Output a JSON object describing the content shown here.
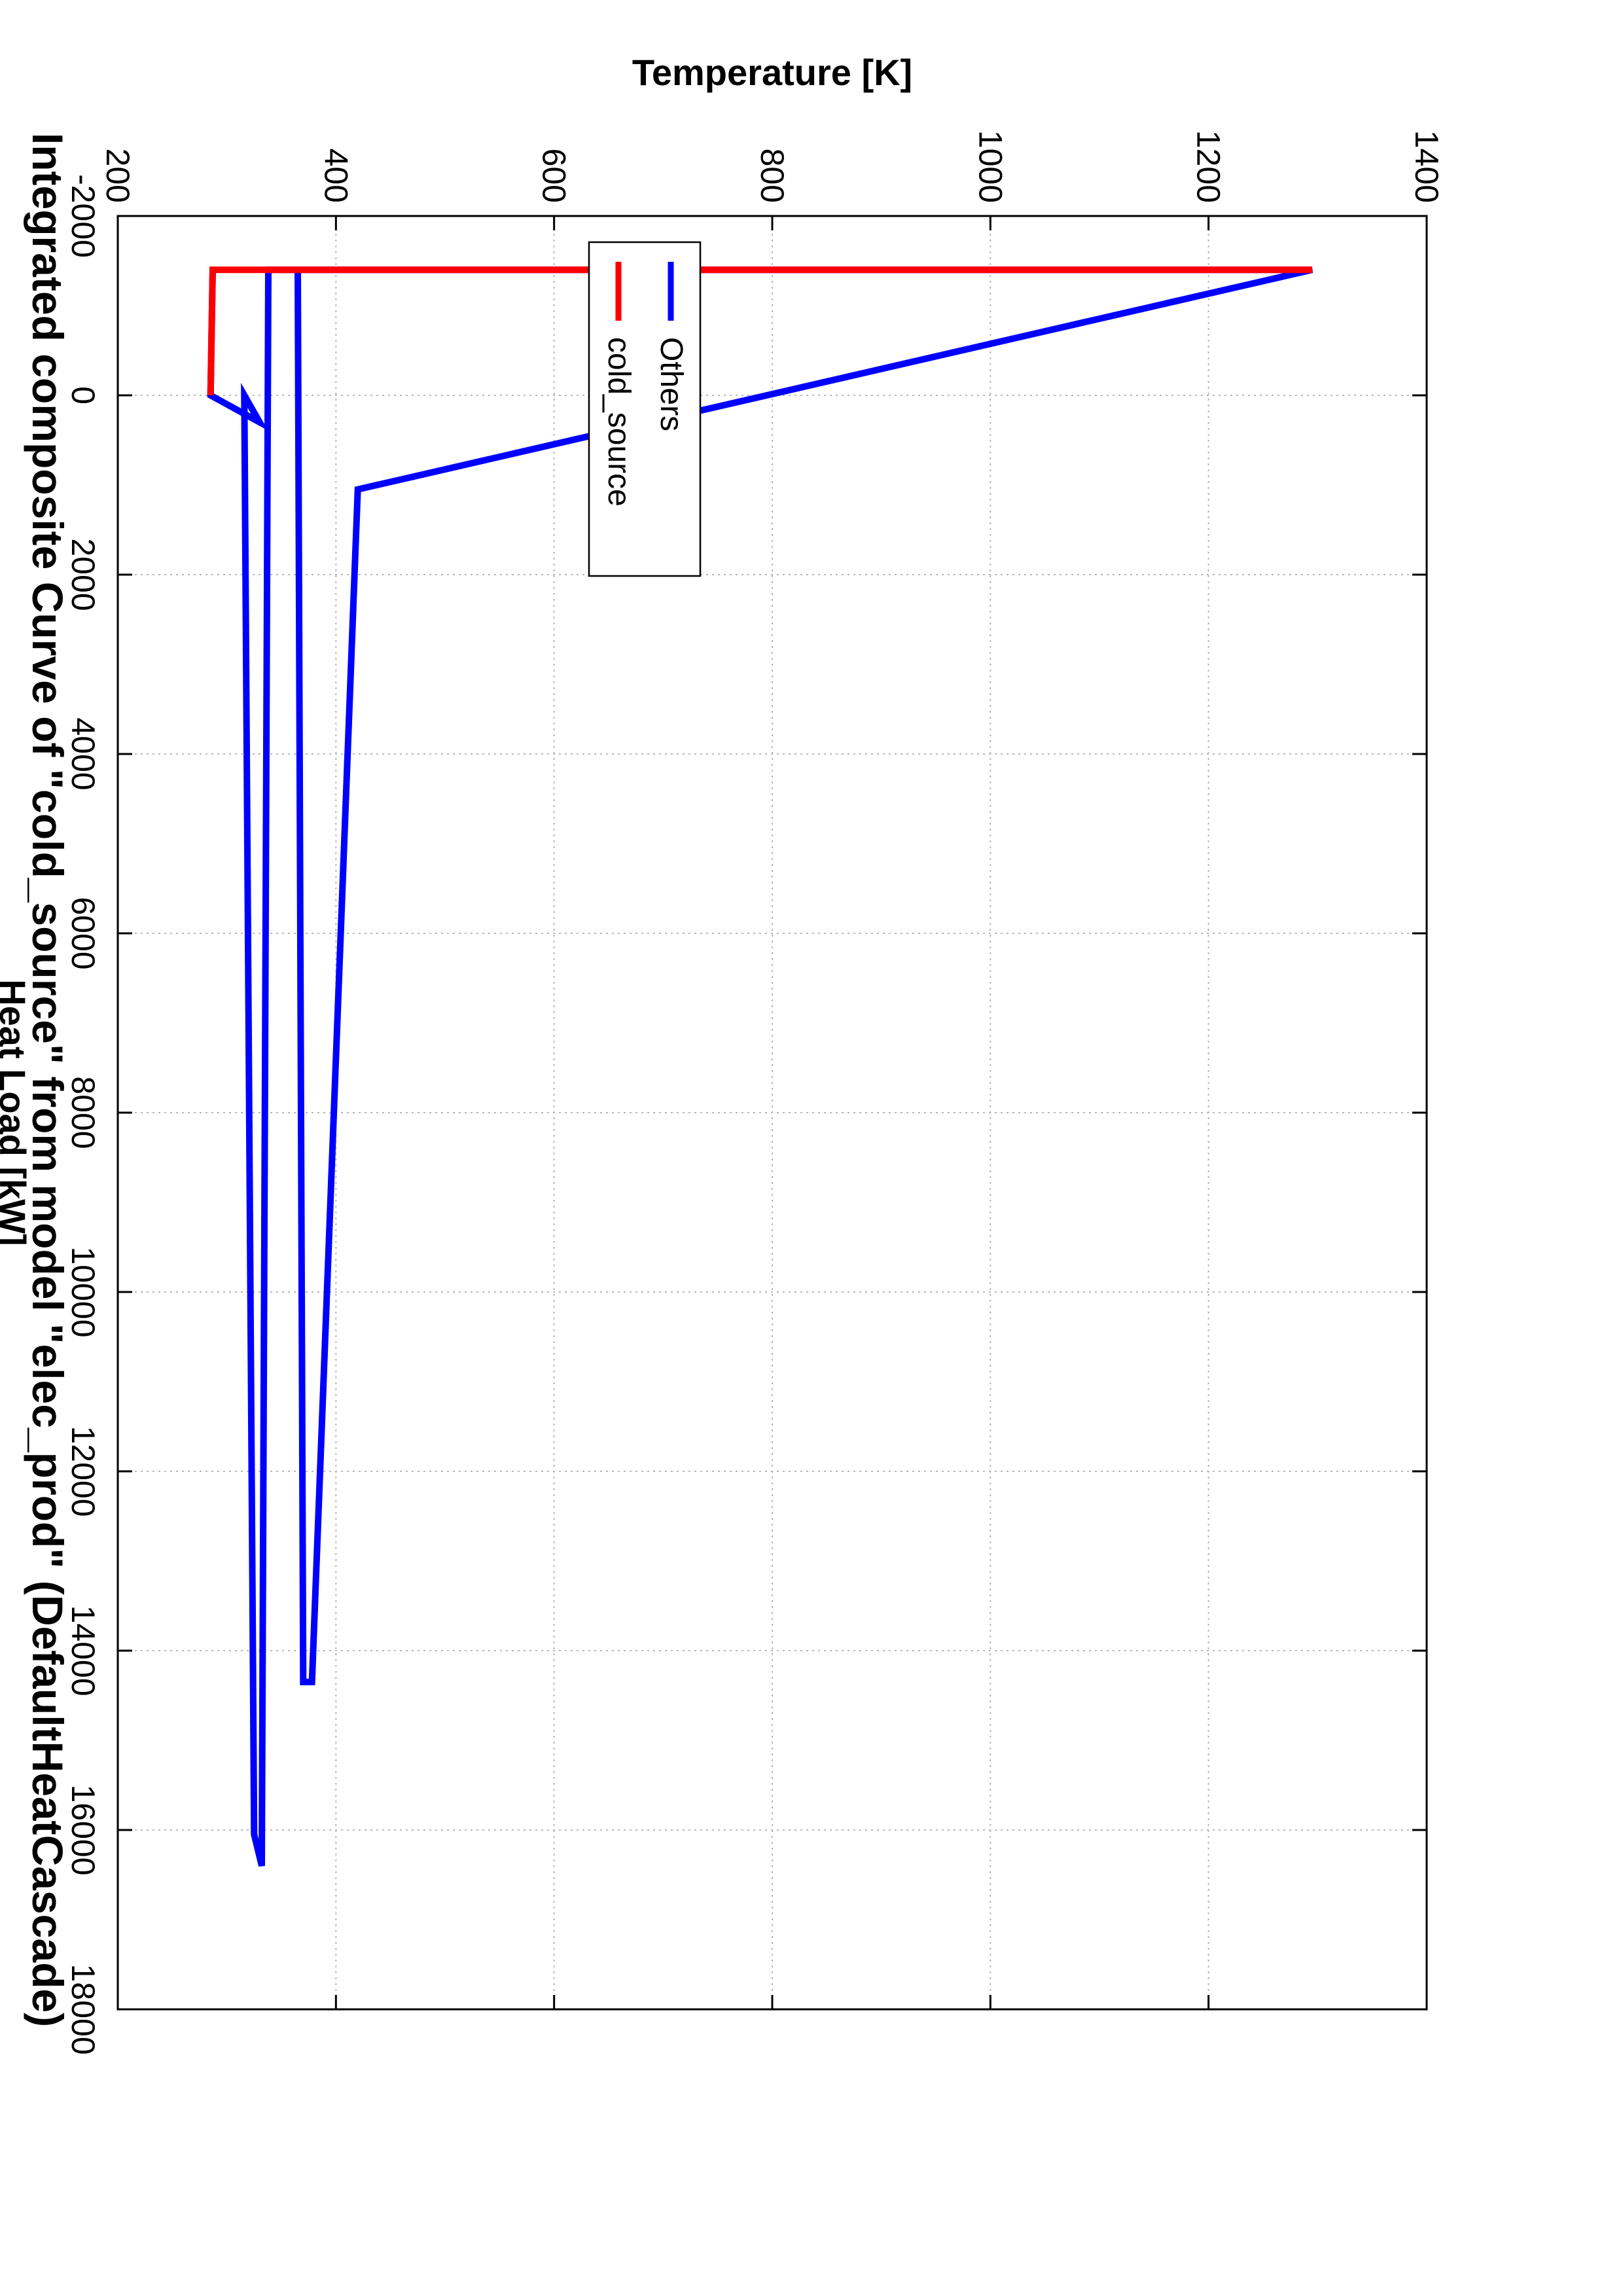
{
  "chart_data": {
    "type": "line",
    "title": "Integrated composite Curve of \"cold_source\" from model \"elec_prod\" (DefaultHeatCascade)",
    "xlabel": "Heat Load [kW]",
    "ylabel": "Temperature [K]",
    "xlim": [
      -2000,
      18000
    ],
    "ylim": [
      200,
      1400
    ],
    "xticks": [
      -2000,
      0,
      2000,
      4000,
      6000,
      8000,
      10000,
      12000,
      14000,
      16000,
      18000
    ],
    "yticks": [
      200,
      400,
      600,
      800,
      1000,
      1200,
      1400
    ],
    "grid": true,
    "orientation": "rotated-90-clockwise",
    "legend_position": "upper-left",
    "series": [
      {
        "name": "Others",
        "color": "#0000ff",
        "points": [
          [
            -1400,
            365
          ],
          [
            14350,
            370
          ],
          [
            14350,
            378
          ],
          [
            1050,
            420
          ],
          [
            -1400,
            1295
          ],
          [
            -1400,
            338
          ],
          [
            16400,
            332
          ],
          [
            16050,
            325
          ],
          [
            0,
            316
          ],
          [
            300,
            330
          ],
          [
            0,
            285
          ],
          [
            -1400,
            287
          ]
        ]
      },
      {
        "name": "cold_source",
        "color": "#ff0000",
        "points": [
          [
            0,
            285
          ],
          [
            -1400,
            287
          ],
          [
            -1400,
            1295
          ]
        ]
      }
    ]
  }
}
